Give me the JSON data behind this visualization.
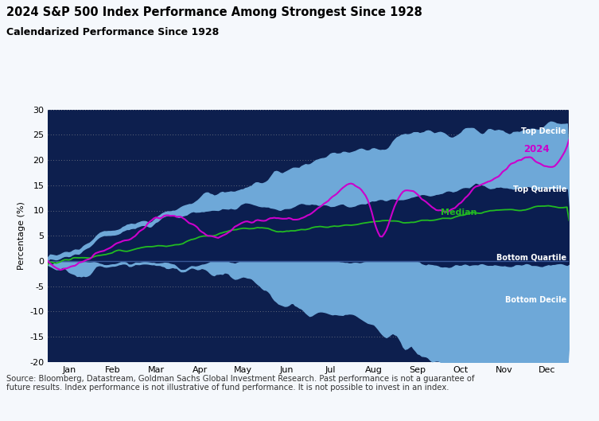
{
  "title": "2024 S&P 500 Index Performance Among Strongest Since 1928",
  "subtitle": "Calendarized Performance Since 1928",
  "ylabel": "Percentage (%)",
  "source_text": "Source: Bloomberg, Datastream, Goldman Sachs Global Investment Research. Past performance is not a guarantee of\nfuture results. Index performance is not illustrative of fund performance. It is not possible to invest in an index.",
  "bg_color": "#f5f8fc",
  "plot_bg": "#0d1f4e",
  "light_blue": "#6ea8d8",
  "dark_blue": "#0b1e50",
  "magenta": "#cc00cc",
  "green": "#22bb22",
  "white": "#ffffff",
  "ylim": [
    -20,
    30
  ],
  "yticks": [
    -20,
    -15,
    -10,
    -5,
    0,
    5,
    10,
    15,
    20,
    25,
    30
  ],
  "months": [
    "Jan",
    "Feb",
    "Mar",
    "Apr",
    "May",
    "Jun",
    "Jul",
    "Aug",
    "Sep",
    "Oct",
    "Nov",
    "Dec"
  ],
  "n_points": 252
}
